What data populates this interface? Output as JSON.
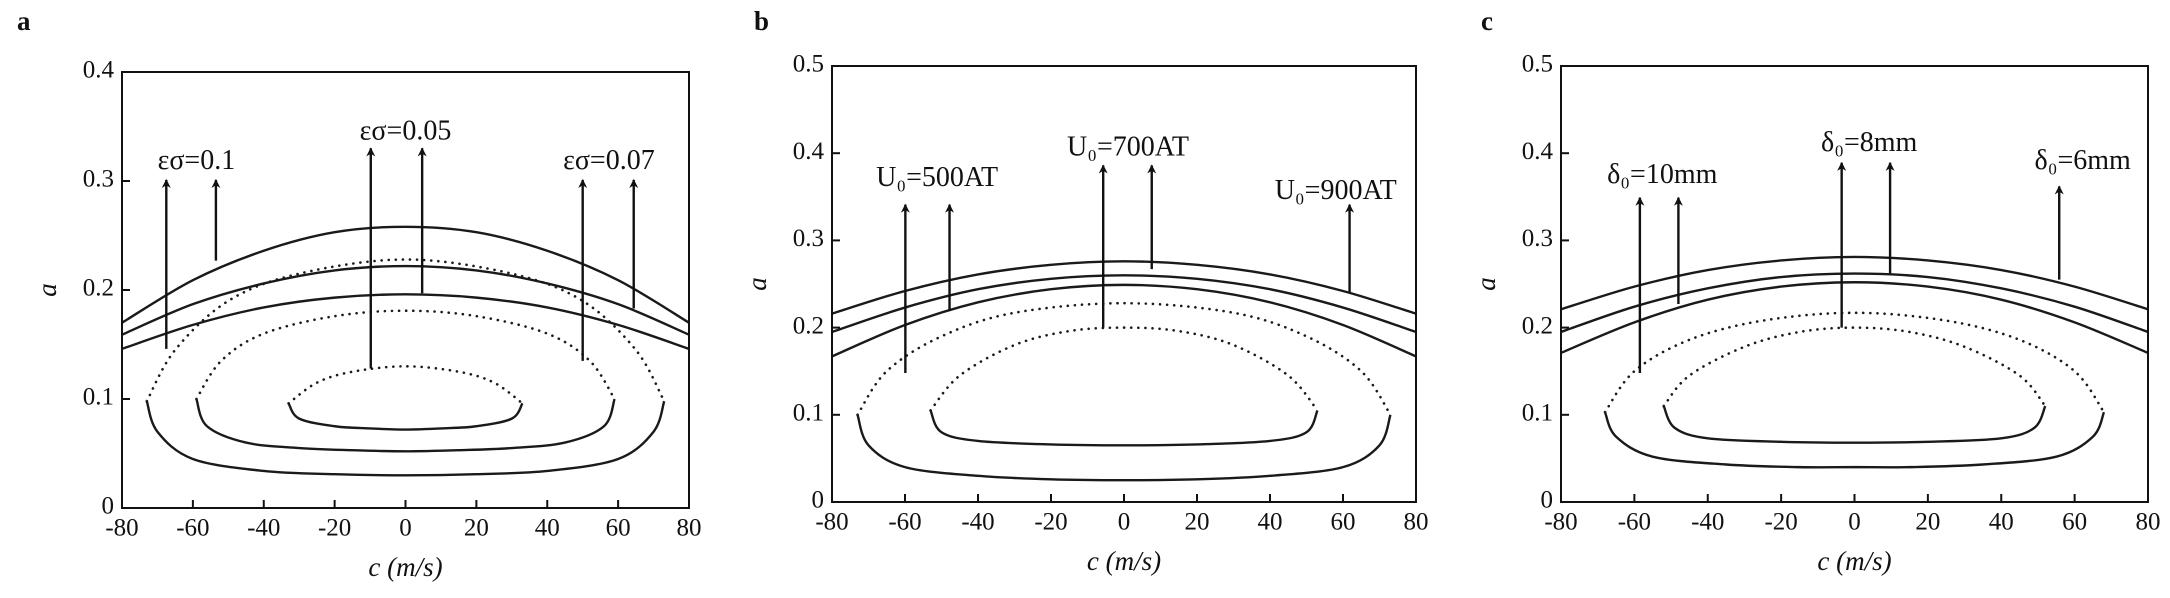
{
  "chart_data": [
    {
      "type": "line",
      "panel_label": "a",
      "xlabel": "c (m/s)",
      "ylabel": "a",
      "xlim": [
        -80,
        80
      ],
      "xticks": [
        -80,
        -60,
        -40,
        -20,
        0,
        20,
        40,
        60,
        80
      ],
      "ylim": [
        0,
        0.4
      ],
      "yticks": [
        0,
        0.1,
        0.2,
        0.3,
        0.4
      ],
      "series": [
        {
          "style": "solid",
          "color": "#1a1a1a",
          "x": [
            -80,
            -60,
            -40,
            -20,
            0,
            20,
            40,
            60,
            80
          ],
          "values": [
            0.17,
            0.209,
            0.236,
            0.253,
            0.258,
            0.253,
            0.236,
            0.209,
            0.17
          ]
        },
        {
          "style": "solid",
          "color": "#1a1a1a",
          "x": [
            -80,
            -60,
            -40,
            -20,
            0,
            20,
            40,
            60,
            80
          ],
          "values": [
            0.159,
            0.187,
            0.206,
            0.218,
            0.222,
            0.218,
            0.206,
            0.187,
            0.159
          ]
        },
        {
          "style": "solid",
          "color": "#1a1a1a",
          "x": [
            -80,
            -60,
            -40,
            -20,
            0,
            20,
            40,
            60,
            80
          ],
          "values": [
            0.146,
            0.168,
            0.184,
            0.193,
            0.196,
            0.193,
            0.184,
            0.168,
            0.146
          ]
        },
        {
          "style": "solid",
          "color": "#1a1a1a",
          "x": [
            -73,
            -70,
            -60,
            -40,
            -20,
            0,
            20,
            40,
            60,
            70,
            73
          ],
          "values": [
            0.098,
            0.07,
            0.045,
            0.034,
            0.031,
            0.03,
            0.031,
            0.034,
            0.045,
            0.07,
            0.098
          ]
        },
        {
          "style": "dotted",
          "color": "#1a1a1a",
          "x": [
            -73,
            -65,
            -50,
            -30,
            0,
            30,
            50,
            65,
            73
          ],
          "values": [
            0.098,
            0.145,
            0.19,
            0.215,
            0.228,
            0.215,
            0.19,
            0.145,
            0.098
          ]
        },
        {
          "style": "solid",
          "color": "#1a1a1a",
          "x": [
            -59,
            -56,
            -45,
            -30,
            -15,
            0,
            15,
            30,
            45,
            56,
            59
          ],
          "values": [
            0.1,
            0.075,
            0.06,
            0.055,
            0.053,
            0.052,
            0.053,
            0.055,
            0.06,
            0.075,
            0.1
          ]
        },
        {
          "style": "dotted",
          "color": "#1a1a1a",
          "x": [
            -59,
            -52,
            -40,
            -20,
            0,
            20,
            40,
            52,
            59
          ],
          "values": [
            0.1,
            0.135,
            0.16,
            0.176,
            0.181,
            0.176,
            0.16,
            0.135,
            0.1
          ]
        },
        {
          "style": "solid",
          "color": "#1a1a1a",
          "x": [
            -33,
            -30,
            -20,
            -10,
            0,
            10,
            20,
            30,
            33
          ],
          "values": [
            0.096,
            0.082,
            0.075,
            0.073,
            0.072,
            0.073,
            0.075,
            0.082,
            0.096
          ]
        },
        {
          "style": "dotted",
          "color": "#1a1a1a",
          "x": [
            -33,
            -25,
            -15,
            0,
            15,
            25,
            33
          ],
          "values": [
            0.096,
            0.115,
            0.125,
            0.13,
            0.125,
            0.115,
            0.096
          ]
        }
      ],
      "annotations": [
        {
          "text": "εσ=0.1",
          "x": -59,
          "y": 0.317,
          "arrows": [
            {
              "x": -67.5,
              "from": 0.146,
              "to": 0.301
            },
            {
              "x": -53.5,
              "from": 0.227,
              "to": 0.301
            }
          ]
        },
        {
          "text": "εσ=0.05",
          "x": 0,
          "y": 0.344,
          "arrows": [
            {
              "x": -9.8,
              "from": 0.128,
              "to": 0.33
            },
            {
              "x": 4.7,
              "from": 0.197,
              "to": 0.33
            }
          ]
        },
        {
          "text": "εσ=0.07",
          "x": 57.4,
          "y": 0.317,
          "arrows": [
            {
              "x": 50,
              "from": 0.135,
              "to": 0.301
            },
            {
              "x": 64.4,
              "from": 0.183,
              "to": 0.301
            }
          ]
        }
      ]
    },
    {
      "type": "line",
      "panel_label": "b",
      "xlabel": "c (m/s)",
      "ylabel": "a",
      "xlim": [
        -80,
        80
      ],
      "xticks": [
        -80,
        -60,
        -40,
        -20,
        0,
        20,
        40,
        60,
        80
      ],
      "ylim": [
        0,
        0.5
      ],
      "yticks": [
        0,
        0.1,
        0.2,
        0.3,
        0.4,
        0.5
      ],
      "series": [
        {
          "style": "solid",
          "color": "#1a1a1a",
          "x": [
            -80,
            -60,
            -40,
            -20,
            0,
            20,
            40,
            60,
            80
          ],
          "values": [
            0.216,
            0.242,
            0.261,
            0.272,
            0.276,
            0.272,
            0.261,
            0.242,
            0.216
          ]
        },
        {
          "style": "solid",
          "color": "#1a1a1a",
          "x": [
            -80,
            -60,
            -40,
            -20,
            0,
            20,
            40,
            60,
            80
          ],
          "values": [
            0.195,
            0.223,
            0.244,
            0.256,
            0.26,
            0.256,
            0.244,
            0.223,
            0.195
          ]
        },
        {
          "style": "solid",
          "color": "#1a1a1a",
          "x": [
            -80,
            -60,
            -40,
            -20,
            0,
            20,
            40,
            60,
            80
          ],
          "values": [
            0.167,
            0.203,
            0.229,
            0.244,
            0.249,
            0.244,
            0.229,
            0.203,
            0.167
          ]
        },
        {
          "style": "solid",
          "color": "#1a1a1a",
          "x": [
            -73,
            -70,
            -60,
            -40,
            -20,
            0,
            20,
            40,
            60,
            70,
            73
          ],
          "values": [
            0.1,
            0.065,
            0.04,
            0.03,
            0.026,
            0.025,
            0.026,
            0.03,
            0.04,
            0.065,
            0.1
          ]
        },
        {
          "style": "dotted",
          "color": "#1a1a1a",
          "x": [
            -73,
            -65,
            -50,
            -30,
            0,
            30,
            50,
            65,
            73
          ],
          "values": [
            0.1,
            0.15,
            0.19,
            0.217,
            0.228,
            0.217,
            0.19,
            0.15,
            0.1
          ]
        },
        {
          "style": "solid",
          "color": "#1a1a1a",
          "x": [
            -53,
            -50,
            -40,
            -20,
            0,
            20,
            40,
            50,
            53
          ],
          "values": [
            0.105,
            0.08,
            0.07,
            0.066,
            0.065,
            0.066,
            0.07,
            0.08,
            0.105
          ]
        },
        {
          "style": "dotted",
          "color": "#1a1a1a",
          "x": [
            -53,
            -45,
            -30,
            -15,
            0,
            15,
            30,
            45,
            53
          ],
          "values": [
            0.105,
            0.145,
            0.18,
            0.196,
            0.2,
            0.196,
            0.18,
            0.145,
            0.105
          ]
        }
      ],
      "annotations": [
        {
          "text": "U₀=500AT",
          "x": -51.2,
          "y": 0.37,
          "arrows": [
            {
              "x": -59.9,
              "from": 0.148,
              "to": 0.341
            },
            {
              "x": -47.8,
              "from": 0.219,
              "to": 0.341
            }
          ]
        },
        {
          "text": "U₀=700AT",
          "x": 1.1,
          "y": 0.405,
          "arrows": [
            {
              "x": -5.7,
              "from": 0.2,
              "to": 0.386
            },
            {
              "x": 7.6,
              "from": 0.267,
              "to": 0.386
            }
          ]
        },
        {
          "text": "U₀=900AT",
          "x": 58,
          "y": 0.355,
          "arrows": [
            {
              "x": 61.8,
              "from": 0.24,
              "to": 0.341
            }
          ]
        }
      ]
    },
    {
      "type": "line",
      "panel_label": "c",
      "xlabel": "c (m/s)",
      "ylabel": "a",
      "xlim": [
        -80,
        80
      ],
      "xticks": [
        -80,
        -60,
        -40,
        -20,
        0,
        20,
        40,
        60,
        80
      ],
      "ylim": [
        0,
        0.5
      ],
      "yticks": [
        0,
        0.1,
        0.2,
        0.3,
        0.4,
        0.5
      ],
      "series": [
        {
          "style": "solid",
          "color": "#1a1a1a",
          "x": [
            -80,
            -60,
            -40,
            -20,
            0,
            20,
            40,
            60,
            80
          ],
          "values": [
            0.221,
            0.247,
            0.266,
            0.277,
            0.281,
            0.277,
            0.266,
            0.247,
            0.221
          ]
        },
        {
          "style": "solid",
          "color": "#1a1a1a",
          "x": [
            -80,
            -60,
            -40,
            -20,
            0,
            20,
            40,
            60,
            80
          ],
          "values": [
            0.195,
            0.224,
            0.245,
            0.258,
            0.262,
            0.258,
            0.245,
            0.224,
            0.195
          ]
        },
        {
          "style": "solid",
          "color": "#1a1a1a",
          "x": [
            -80,
            -60,
            -40,
            -20,
            0,
            20,
            40,
            60,
            80
          ],
          "values": [
            0.171,
            0.206,
            0.232,
            0.247,
            0.252,
            0.247,
            0.232,
            0.206,
            0.171
          ]
        },
        {
          "style": "solid",
          "color": "#1a1a1a",
          "x": [
            -68,
            -65,
            -55,
            -35,
            -15,
            0,
            15,
            35,
            55,
            65,
            68
          ],
          "values": [
            0.103,
            0.075,
            0.052,
            0.043,
            0.04,
            0.04,
            0.04,
            0.043,
            0.052,
            0.075,
            0.103
          ]
        },
        {
          "style": "dotted",
          "color": "#1a1a1a",
          "x": [
            -68,
            -60,
            -45,
            -25,
            0,
            25,
            45,
            60,
            68
          ],
          "values": [
            0.103,
            0.15,
            0.186,
            0.208,
            0.217,
            0.208,
            0.186,
            0.15,
            0.103
          ]
        },
        {
          "style": "solid",
          "color": "#1a1a1a",
          "x": [
            -52,
            -49,
            -40,
            -20,
            0,
            20,
            40,
            49,
            52
          ],
          "values": [
            0.11,
            0.085,
            0.073,
            0.069,
            0.068,
            0.069,
            0.073,
            0.085,
            0.11
          ]
        },
        {
          "style": "dotted",
          "color": "#1a1a1a",
          "x": [
            -52,
            -45,
            -30,
            -15,
            0,
            15,
            30,
            45,
            52
          ],
          "values": [
            0.11,
            0.145,
            0.178,
            0.195,
            0.2,
            0.195,
            0.178,
            0.145,
            0.11
          ]
        }
      ],
      "annotations": [
        {
          "text": "δ₀=10mm",
          "x": -52.4,
          "y": 0.373,
          "arrows": [
            {
              "x": -58.5,
              "from": 0.148,
              "to": 0.349
            },
            {
              "x": -48,
              "from": 0.227,
              "to": 0.349
            }
          ]
        },
        {
          "text": "δ₀=8mm",
          "x": 4,
          "y": 0.41,
          "arrows": [
            {
              "x": -3.5,
              "from": 0.2,
              "to": 0.389
            },
            {
              "x": 9.7,
              "from": 0.262,
              "to": 0.389
            }
          ]
        },
        {
          "text": "δ₀=6mm",
          "x": 62.2,
          "y": 0.389,
          "arrows": [
            {
              "x": 55.8,
              "from": 0.255,
              "to": 0.362
            }
          ]
        }
      ]
    }
  ]
}
